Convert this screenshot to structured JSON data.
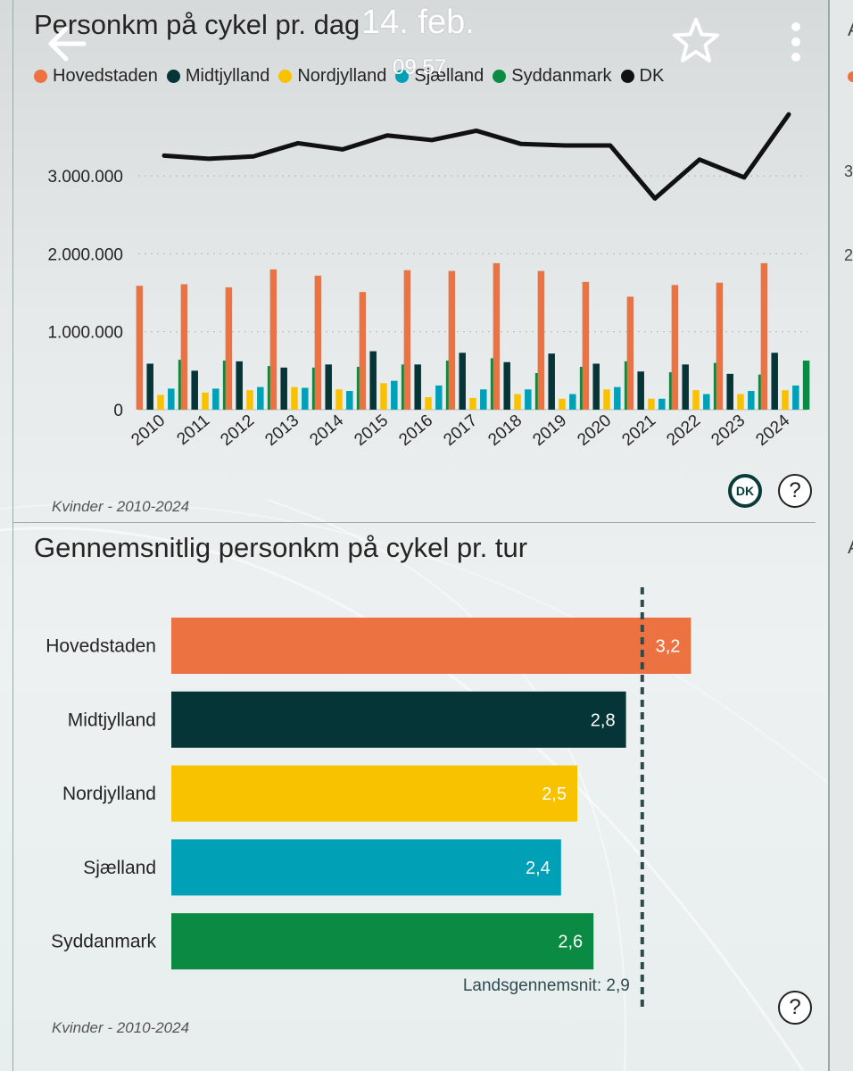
{
  "status_bar": {
    "date": "14. feb.",
    "time": "09.57"
  },
  "colors": {
    "Hovedstaden": "#ec7241",
    "Midtjylland": "#063537",
    "Nordjylland": "#f9c200",
    "Sjælland": "#00a0b6",
    "Syddanmark": "#0a8a43",
    "DK": "#111111"
  },
  "icons": {
    "back": "back-arrow-icon",
    "star": "star-icon",
    "more": "more-vertical-icon",
    "help": "help-icon"
  },
  "top_panel": {
    "title": "Personkm på cykel pr. dag",
    "footnote": "Kvinder - 2010-2024",
    "dk_button": "DK",
    "help_button": "?"
  },
  "bottom_panel": {
    "title": "Gennemsnitlig personkm på cykel pr. tur",
    "footnote": "Kvinder - 2010-2024",
    "help_button": "?"
  },
  "right_peek": {
    "title_char": "A",
    "tick_3": "3",
    "tick_2": "2"
  },
  "chart_data": [
    {
      "type": "bar",
      "title": "Personkm på cykel pr. dag",
      "categories": [
        "2010",
        "2011",
        "2012",
        "2013",
        "2014",
        "2015",
        "2016",
        "2017",
        "2018",
        "2019",
        "2020",
        "2021",
        "2022",
        "2023",
        "2024"
      ],
      "series": [
        {
          "name": "Hovedstaden",
          "type": "bar",
          "values": [
            1590000,
            1610000,
            1570000,
            1800000,
            1720000,
            1510000,
            1790000,
            1780000,
            1880000,
            1780000,
            1640000,
            1450000,
            1600000,
            1630000,
            1880000
          ]
        },
        {
          "name": "Midtjylland",
          "type": "bar",
          "values": [
            590000,
            500000,
            620000,
            540000,
            580000,
            750000,
            580000,
            730000,
            610000,
            720000,
            590000,
            490000,
            580000,
            460000,
            730000
          ]
        },
        {
          "name": "Nordjylland",
          "type": "bar",
          "values": [
            190000,
            220000,
            250000,
            290000,
            260000,
            340000,
            160000,
            150000,
            200000,
            140000,
            260000,
            140000,
            250000,
            200000,
            250000
          ]
        },
        {
          "name": "Sjælland",
          "type": "bar",
          "values": [
            270000,
            270000,
            290000,
            280000,
            240000,
            370000,
            310000,
            260000,
            260000,
            200000,
            290000,
            140000,
            200000,
            240000,
            310000
          ]
        },
        {
          "name": "Syddanmark",
          "type": "bar",
          "values": [
            640000,
            630000,
            560000,
            540000,
            550000,
            580000,
            630000,
            660000,
            470000,
            550000,
            620000,
            480000,
            600000,
            450000,
            630000
          ]
        },
        {
          "name": "DK",
          "type": "line",
          "values": [
            3260000,
            3220000,
            3250000,
            3420000,
            3340000,
            3520000,
            3460000,
            3580000,
            3410000,
            3390000,
            3390000,
            2710000,
            3210000,
            2980000,
            3790000
          ]
        }
      ],
      "yticks": [
        0,
        1000000,
        2000000,
        3000000
      ],
      "ytick_labels": [
        "0",
        "1.000.000",
        "2.000.000",
        "3.000.000"
      ],
      "ylim": [
        0,
        3900000
      ],
      "legend": "top",
      "grid": true
    },
    {
      "type": "bar",
      "orientation": "horizontal",
      "title": "Gennemsnitlig personkm på cykel pr. tur",
      "categories": [
        "Hovedstaden",
        "Midtjylland",
        "Nordjylland",
        "Sjælland",
        "Syddanmark"
      ],
      "values": [
        3.2,
        2.8,
        2.5,
        2.4,
        2.6
      ],
      "value_labels": [
        "3,2",
        "2,8",
        "2,5",
        "2,4",
        "2,6"
      ],
      "reference_line": {
        "value": 2.9,
        "label": "Landsgennemsnit: 2,9"
      },
      "xlim": [
        0,
        3.2
      ]
    }
  ]
}
